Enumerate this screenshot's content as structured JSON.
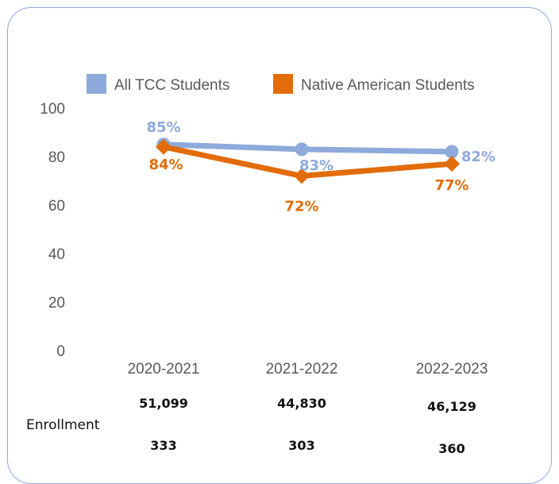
{
  "chart_data": {
    "type": "line",
    "categories": [
      "2020-2021",
      "2021-2022",
      "2022-2023"
    ],
    "ylim": [
      0,
      100
    ],
    "yticks": [
      0,
      20,
      40,
      60,
      80,
      100
    ],
    "series": [
      {
        "name": "All TCC Students",
        "values": [
          85,
          83,
          82
        ],
        "labels": [
          "85%",
          "83%",
          "82%"
        ],
        "color": "#8eaadb",
        "marker": "circle"
      },
      {
        "name": "Native American Students",
        "values": [
          84,
          72,
          77
        ],
        "labels": [
          "84%",
          "72%",
          "77%"
        ],
        "color": "#e36c0a",
        "marker": "diamond"
      }
    ],
    "legend": "top",
    "grid": false
  },
  "enrollment": {
    "label": "Enrollment",
    "all_tcc": [
      "51,099",
      "44,830",
      "46,129"
    ],
    "native_american": [
      "333",
      "303",
      "360"
    ]
  }
}
